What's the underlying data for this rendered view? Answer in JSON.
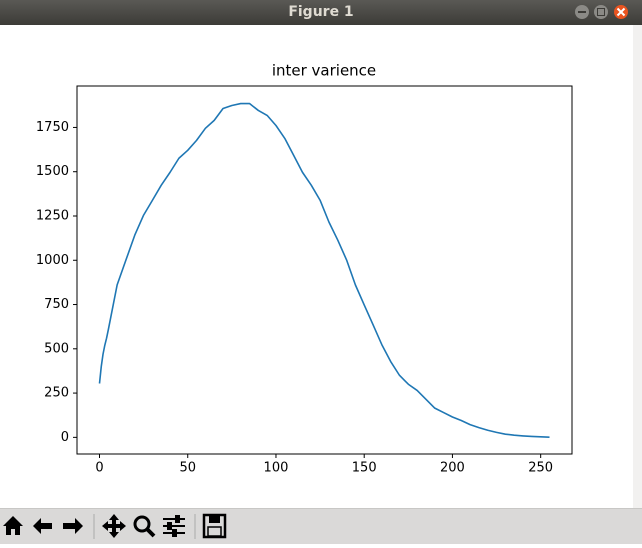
{
  "window": {
    "title": "Figure 1"
  },
  "chart_data": {
    "type": "line",
    "title": "inter varience",
    "color": "#1f77b4",
    "x": [
      0,
      1,
      2,
      3,
      4,
      5,
      10,
      15,
      20,
      25,
      30,
      35,
      40,
      45,
      50,
      55,
      60,
      65,
      70,
      75,
      80,
      85,
      90,
      95,
      100,
      105,
      110,
      115,
      120,
      125,
      130,
      135,
      140,
      145,
      150,
      155,
      160,
      165,
      170,
      175,
      180,
      185,
      190,
      195,
      200,
      205,
      210,
      215,
      220,
      225,
      230,
      235,
      240,
      245,
      250,
      255
    ],
    "values": [
      304,
      400,
      470,
      520,
      560,
      608,
      861,
      1002,
      1142,
      1255,
      1339,
      1424,
      1497,
      1576,
      1621,
      1677,
      1745,
      1790,
      1857,
      1874,
      1885,
      1885,
      1846,
      1818,
      1761,
      1688,
      1593,
      1497,
      1424,
      1339,
      1216,
      1114,
      1002,
      861,
      748,
      636,
      523,
      428,
      350,
      300,
      265,
      215,
      165,
      140,
      115,
      95,
      72,
      55,
      40,
      28,
      18,
      12,
      8,
      5,
      3,
      1
    ],
    "xlim": [
      -12.75,
      267.75
    ],
    "ylim": [
      -94,
      1984
    ],
    "xticks": [
      0,
      50,
      100,
      150,
      200,
      250
    ],
    "yticks": [
      0,
      250,
      500,
      750,
      1000,
      1250,
      1500,
      1750
    ]
  }
}
